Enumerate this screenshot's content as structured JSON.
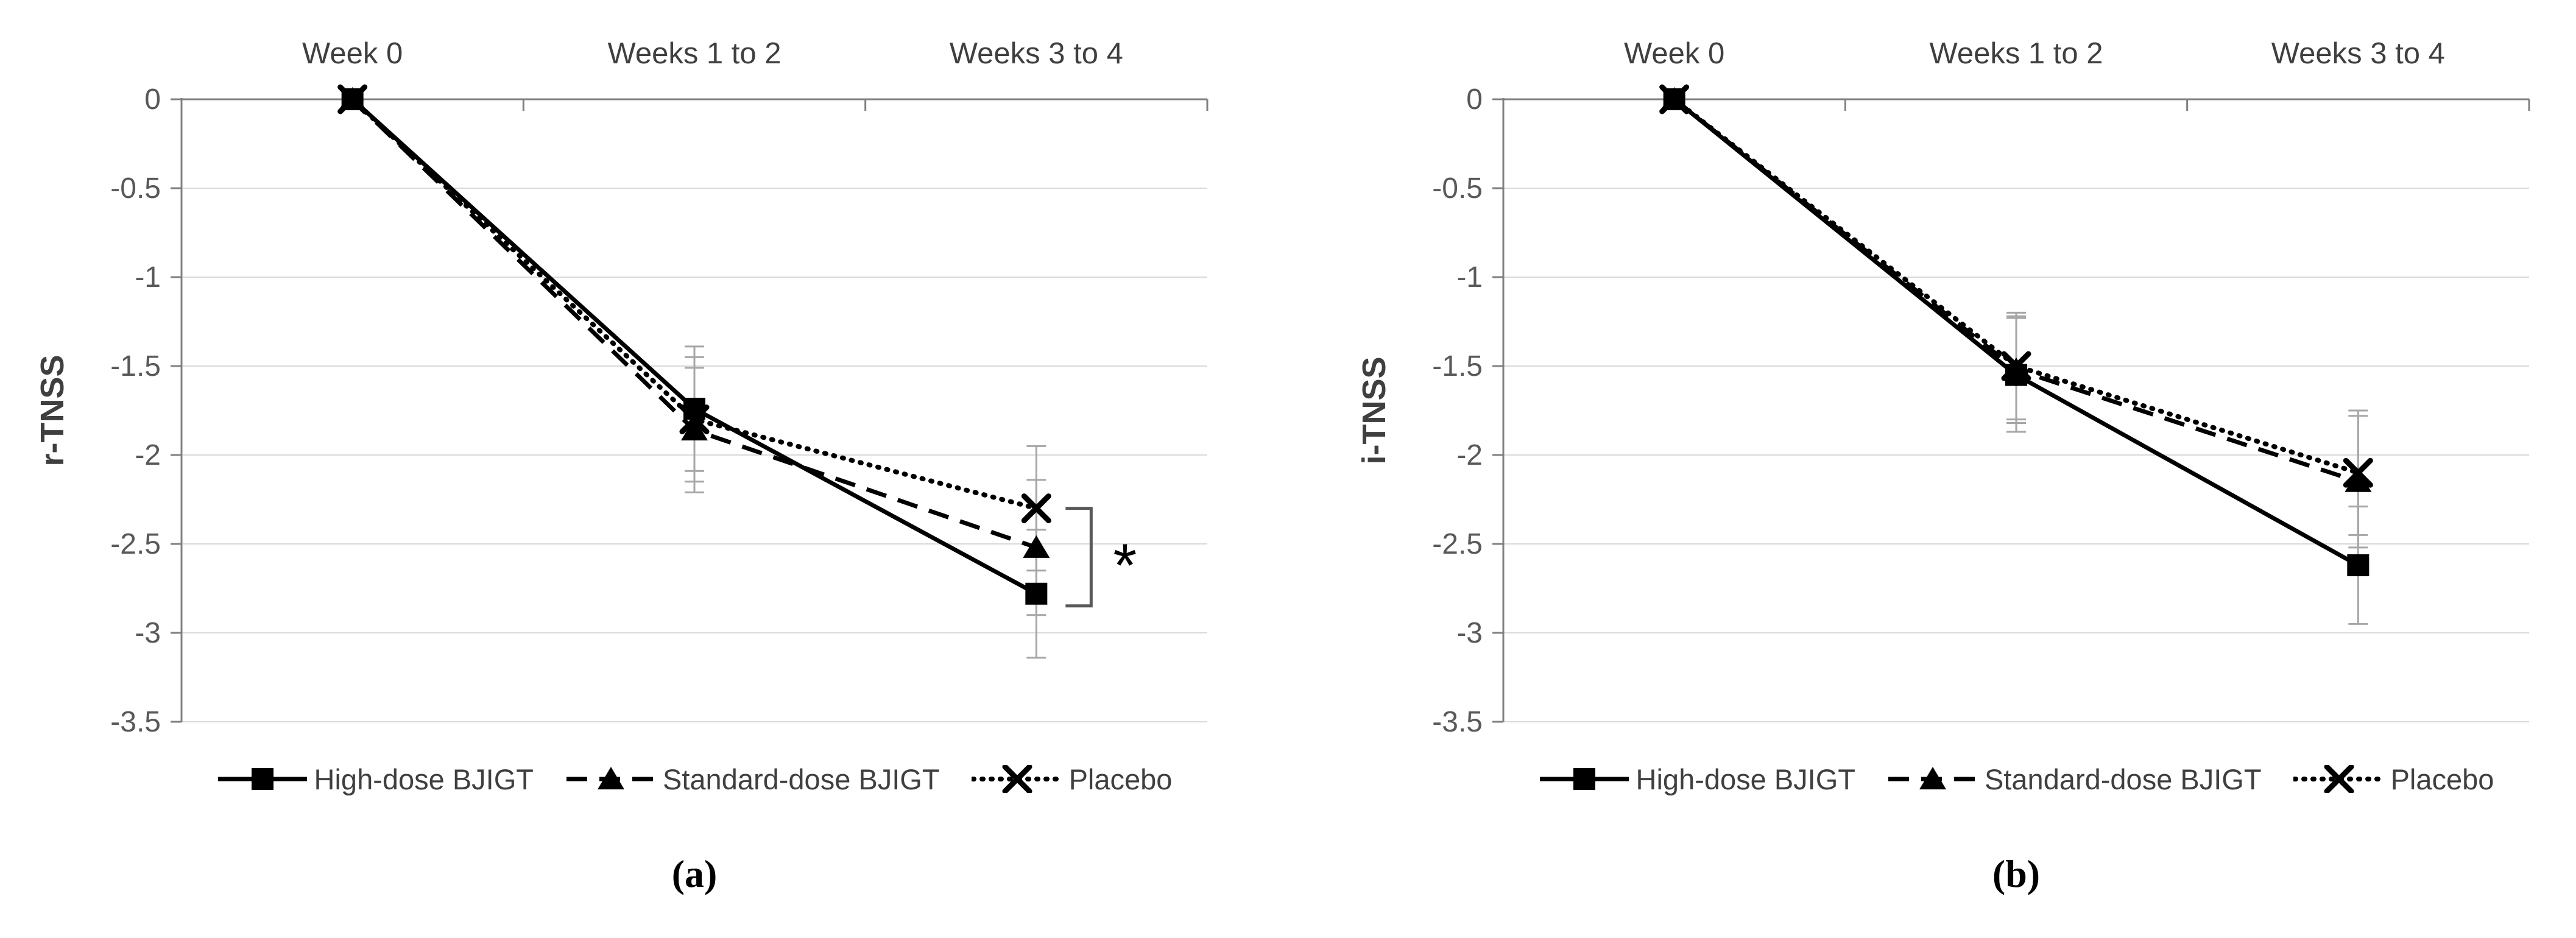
{
  "colors": {
    "series": "#000000",
    "error_bar": "#a6a6a6",
    "gridline": "#d9d9d9",
    "axis_line": "#808080",
    "tick_label": "#595959",
    "category_label": "#3f3f3f",
    "legend_label": "#3f3f3f",
    "bracket": "#595959",
    "caption": "#000000"
  },
  "chart_data": [
    {
      "type": "line",
      "caption": "(a)",
      "ylabel": "r-TNSS",
      "categories": [
        "Week 0",
        "Weeks 1 to 2",
        "Weeks 3 to 4"
      ],
      "ylim": [
        -3.5,
        0
      ],
      "yticks": [
        0,
        -0.5,
        -1,
        -1.5,
        -2,
        -2.5,
        -3,
        -3.5
      ],
      "ytick_labels": [
        "0",
        "-0.5",
        "-1",
        "-1.5",
        "-2",
        "-2.5",
        "-3",
        "-3.5"
      ],
      "grid": true,
      "legend_position": "bottom",
      "series": [
        {
          "name": "High-dose BJIGT",
          "line": "solid",
          "marker": "square",
          "values": [
            0,
            -1.74,
            -2.78
          ],
          "errors": [
            0,
            0.35,
            0.36
          ]
        },
        {
          "name": "Standard-dose BJIGT",
          "line": "dashed",
          "marker": "triangle",
          "values": [
            0,
            -1.86,
            -2.52
          ],
          "errors": [
            0,
            0.35,
            0.38
          ]
        },
        {
          "name": "Placebo",
          "line": "dotted",
          "marker": "x",
          "values": [
            0,
            -1.8,
            -2.3
          ],
          "errors": [
            0,
            0.35,
            0.35
          ]
        }
      ],
      "annotation": {
        "text": "*",
        "at_category": "Weeks 3 to 4",
        "between_series": [
          "Placebo",
          "High-dose BJIGT"
        ]
      }
    },
    {
      "type": "line",
      "caption": "(b)",
      "ylabel": "i-TNSS",
      "categories": [
        "Week 0",
        "Weeks 1 to 2",
        "Weeks 3 to 4"
      ],
      "ylim": [
        -3.5,
        0
      ],
      "yticks": [
        0,
        -0.5,
        -1,
        -1.5,
        -2,
        -2.5,
        -3,
        -3.5
      ],
      "ytick_labels": [
        "0",
        "-0.5",
        "-1",
        "-1.5",
        "-2",
        "-2.5",
        "-3",
        "-3.5"
      ],
      "grid": true,
      "legend_position": "bottom",
      "series": [
        {
          "name": "High-dose BJIGT",
          "line": "solid",
          "marker": "square",
          "values": [
            0,
            -1.55,
            -2.62
          ],
          "errors": [
            0,
            0.32,
            0.33
          ]
        },
        {
          "name": "Standard-dose BJIGT",
          "line": "dashed",
          "marker": "triangle",
          "values": [
            0,
            -1.52,
            -2.15
          ],
          "errors": [
            0,
            0.3,
            0.37
          ]
        },
        {
          "name": "Placebo",
          "line": "dotted",
          "marker": "x",
          "values": [
            0,
            -1.5,
            -2.1
          ],
          "errors": [
            0,
            0.3,
            0.35
          ]
        }
      ],
      "annotation": null
    }
  ]
}
